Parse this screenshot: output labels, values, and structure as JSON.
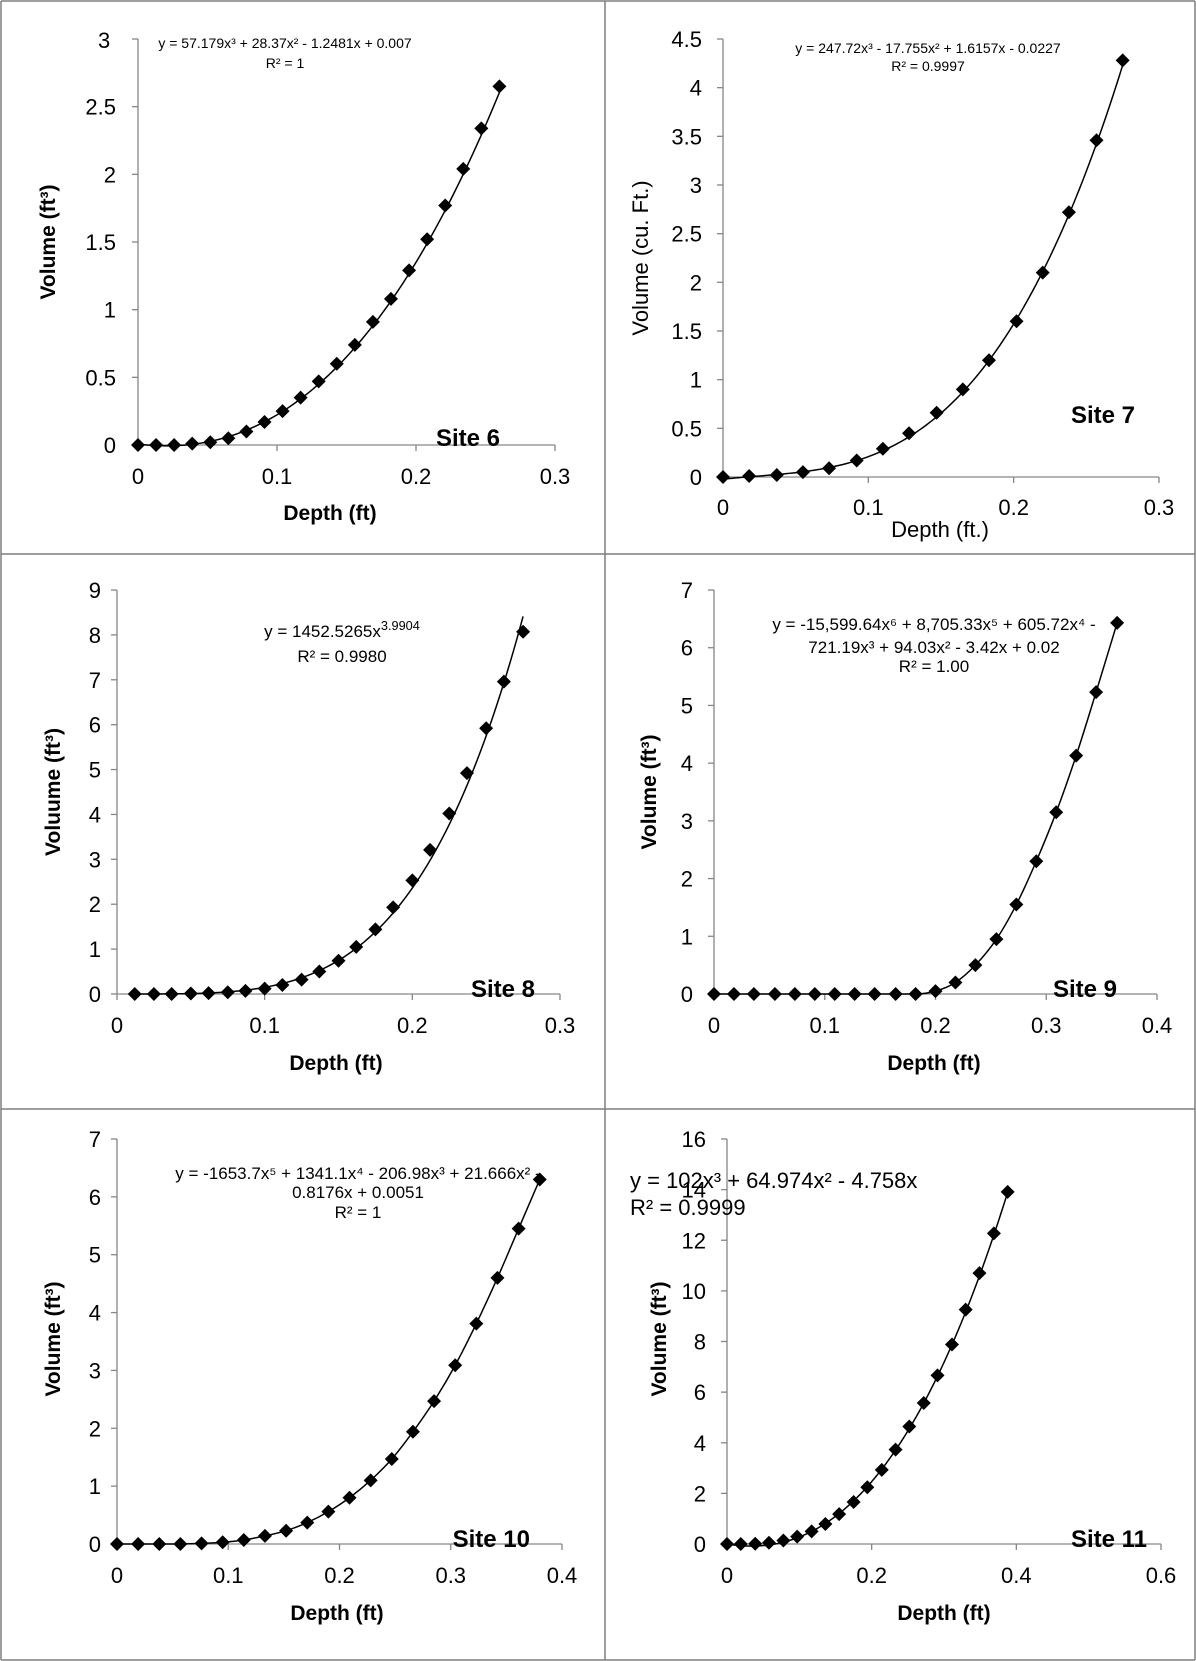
{
  "chart_data": [
    {
      "id": "site6",
      "type": "scatter",
      "site_label": "Site 6",
      "xlabel": "Depth (ft)",
      "ylabel": "Volume (ft³)",
      "xlim": [
        0,
        0.3
      ],
      "ylim": [
        0,
        3
      ],
      "xticks": [
        "0",
        "0.1",
        "0.2",
        "0.3"
      ],
      "yticks": [
        "0",
        "0.5",
        "1",
        "1.5",
        "2",
        "2.5",
        "3"
      ],
      "equation": [
        "y = 57.179x³ + 28.37x² - 1.2481x + 0.007",
        "R² = 1"
      ],
      "trendline": {
        "kind": "poly",
        "coef": [
          0.007,
          -1.2481,
          28.37,
          57.179
        ]
      },
      "x": [
        0.0,
        0.013,
        0.026,
        0.039,
        0.052,
        0.065,
        0.078,
        0.091,
        0.104,
        0.117,
        0.13,
        0.143,
        0.156,
        0.169,
        0.182,
        0.195,
        0.208,
        0.221,
        0.234,
        0.247,
        0.26
      ],
      "y": [
        0.0,
        0.0,
        0.0,
        0.01,
        0.02,
        0.05,
        0.1,
        0.17,
        0.25,
        0.35,
        0.47,
        0.6,
        0.74,
        0.91,
        1.08,
        1.29,
        1.52,
        1.77,
        2.04,
        2.34,
        2.65
      ]
    },
    {
      "id": "site7",
      "type": "scatter",
      "site_label": "Site 7",
      "xlabel": "Depth (ft.)",
      "ylabel": "Volume (cu. Ft.)",
      "xlim": [
        0,
        0.3
      ],
      "ylim": [
        0,
        4.5
      ],
      "xticks": [
        "0",
        "0.1",
        "0.2",
        "0.3"
      ],
      "yticks": [
        "0",
        "0.5",
        "1",
        "1.5",
        "2",
        "2.5",
        "3",
        "3.5",
        "4",
        "4.5"
      ],
      "equation": [
        "y = 247.72x³ - 17.755x² + 1.6157x - 0.0227",
        "R² = 0.9997"
      ],
      "trendline": {
        "kind": "poly",
        "coef": [
          -0.0227,
          1.6157,
          -17.755,
          247.72
        ]
      },
      "x": [
        0.0,
        0.018,
        0.037,
        0.055,
        0.073,
        0.092,
        0.11,
        0.128,
        0.147,
        0.165,
        0.183,
        0.202,
        0.22,
        0.238,
        0.257,
        0.275
      ],
      "y": [
        0.0,
        0.01,
        0.02,
        0.05,
        0.09,
        0.17,
        0.29,
        0.45,
        0.66,
        0.9,
        1.2,
        1.6,
        2.1,
        2.72,
        3.46,
        4.28
      ]
    },
    {
      "id": "site8",
      "type": "scatter",
      "site_label": "Site 8",
      "xlabel": "Depth (ft)",
      "ylabel": "Voluume (ft³)",
      "xlim": [
        0,
        0.3
      ],
      "ylim": [
        0,
        9
      ],
      "xticks": [
        "0",
        "0.1",
        "0.2",
        "0.3"
      ],
      "yticks": [
        "0",
        "1",
        "2",
        "3",
        "4",
        "5",
        "6",
        "7",
        "8",
        "9"
      ],
      "equation": [
        "y = 1452.5265x^3.9904",
        "R² = 0.9980"
      ],
      "trendline": {
        "kind": "power",
        "a": 1452.5265,
        "b": 3.9904
      },
      "x": [
        0.012,
        0.025,
        0.037,
        0.05,
        0.062,
        0.075,
        0.087,
        0.1,
        0.112,
        0.125,
        0.137,
        0.15,
        0.162,
        0.175,
        0.187,
        0.2,
        0.212,
        0.225,
        0.237,
        0.25,
        0.262,
        0.275
      ],
      "y": [
        0.0,
        0.0,
        0.0,
        0.01,
        0.02,
        0.04,
        0.07,
        0.12,
        0.2,
        0.32,
        0.5,
        0.74,
        1.05,
        1.44,
        1.93,
        2.53,
        3.21,
        4.02,
        4.92,
        5.92,
        6.96,
        8.07
      ]
    },
    {
      "id": "site9",
      "type": "scatter",
      "site_label": "Site 9",
      "xlabel": "Depth (ft)",
      "ylabel": "Volume (ft³)",
      "xlim": [
        0,
        0.4
      ],
      "ylim": [
        0,
        7
      ],
      "xticks": [
        "0",
        "0.1",
        "0.2",
        "0.3",
        "0.4"
      ],
      "yticks": [
        "0",
        "1",
        "2",
        "3",
        "4",
        "5",
        "6",
        "7"
      ],
      "equation": [
        "y = -15,599.64x⁶ + 8,705.33x⁵ + 605.72x⁴ -",
        "721.19x³ + 94.03x² - 3.42x + 0.02",
        "R² = 1.00"
      ],
      "trendline": {
        "kind": "interp"
      },
      "x": [
        0.0,
        0.018,
        0.036,
        0.055,
        0.073,
        0.091,
        0.109,
        0.127,
        0.145,
        0.164,
        0.182,
        0.2,
        0.218,
        0.236,
        0.255,
        0.273,
        0.291,
        0.309,
        0.327,
        0.345,
        0.364
      ],
      "y": [
        0.0,
        0.0,
        0.0,
        0.0,
        0.0,
        0.0,
        0.0,
        0.0,
        0.0,
        0.0,
        0.0,
        0.05,
        0.2,
        0.5,
        0.95,
        1.55,
        2.3,
        3.15,
        4.13,
        5.23,
        6.43
      ]
    },
    {
      "id": "site10",
      "type": "scatter",
      "site_label": "Site 10",
      "xlabel": "Depth (ft)",
      "ylabel": "Volume (ft³)",
      "xlim": [
        0,
        0.4
      ],
      "ylim": [
        0,
        7
      ],
      "xticks": [
        "0",
        "0.1",
        "0.2",
        "0.3",
        "0.4"
      ],
      "yticks": [
        "0",
        "1",
        "2",
        "3",
        "4",
        "5",
        "6",
        "7"
      ],
      "equation": [
        "y = -1653.7x⁵ + 1341.1x⁴ - 206.98x³ + 21.666x² -",
        "0.8176x + 0.0051",
        "R² = 1"
      ],
      "trendline": {
        "kind": "interp"
      },
      "x": [
        0.0,
        0.019,
        0.038,
        0.057,
        0.076,
        0.095,
        0.114,
        0.133,
        0.152,
        0.171,
        0.19,
        0.209,
        0.228,
        0.247,
        0.266,
        0.285,
        0.304,
        0.323,
        0.342,
        0.361,
        0.38
      ],
      "y": [
        0.0,
        0.0,
        0.0,
        0.0,
        0.01,
        0.03,
        0.07,
        0.14,
        0.23,
        0.37,
        0.56,
        0.8,
        1.1,
        1.47,
        1.94,
        2.47,
        3.09,
        3.81,
        4.6,
        5.45,
        6.3
      ]
    },
    {
      "id": "site11",
      "type": "scatter",
      "site_label": "Site 11",
      "xlabel": "Depth (ft)",
      "ylabel": "Volume (ft³)",
      "xlim": [
        0,
        0.6
      ],
      "ylim": [
        0,
        16
      ],
      "xticks": [
        "0",
        "0.2",
        "0.4",
        "0.6"
      ],
      "yticks": [
        "0",
        "2",
        "4",
        "6",
        "8",
        "10",
        "12",
        "14",
        "16"
      ],
      "equation": [
        "y = 102x³ + 64.974x² - 4.758x",
        "R² = 0.9999"
      ],
      "trendline": {
        "kind": "poly",
        "coef": [
          0,
          -4.758,
          64.974,
          102
        ]
      },
      "x": [
        0.0,
        0.019,
        0.039,
        0.058,
        0.078,
        0.097,
        0.117,
        0.136,
        0.155,
        0.175,
        0.194,
        0.214,
        0.233,
        0.252,
        0.272,
        0.291,
        0.311,
        0.33,
        0.349,
        0.369,
        0.388
      ],
      "y": [
        0.0,
        0.0,
        0.01,
        0.05,
        0.14,
        0.29,
        0.5,
        0.79,
        1.18,
        1.66,
        2.24,
        2.93,
        3.73,
        4.64,
        5.57,
        6.66,
        7.88,
        9.26,
        10.7,
        12.27,
        13.91
      ]
    }
  ]
}
